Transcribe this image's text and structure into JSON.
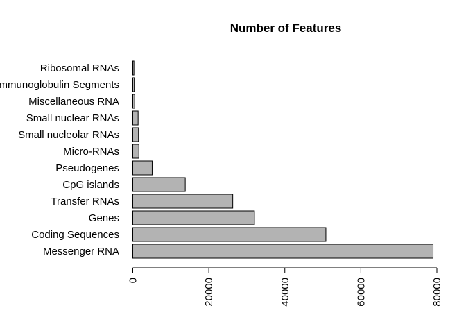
{
  "chart_data": {
    "type": "bar",
    "orientation": "horizontal",
    "title": "Number of Features",
    "xlabel": "",
    "ylabel": "",
    "bar_color": "#b3b3b3",
    "xlim": [
      0,
      80000
    ],
    "x_ticks": [
      0,
      20000,
      40000,
      60000,
      80000
    ],
    "x_tick_labels": [
      "0",
      "20000",
      "40000",
      "60000",
      "80000"
    ],
    "grid": false,
    "categories": [
      "Messenger RNA",
      "Coding Sequences",
      "Genes",
      "Transfer RNAs",
      "CpG islands",
      "Pseudogenes",
      "Micro-RNAs",
      "Small nucleolar RNAs",
      "Small nuclear RNAs",
      "Miscellaneous RNA",
      "Immunoglobulin Segments",
      "Ribosomal RNAs"
    ],
    "values": [
      79000,
      50800,
      32000,
      26300,
      13800,
      5100,
      1600,
      1500,
      1400,
      500,
      400,
      300
    ]
  }
}
